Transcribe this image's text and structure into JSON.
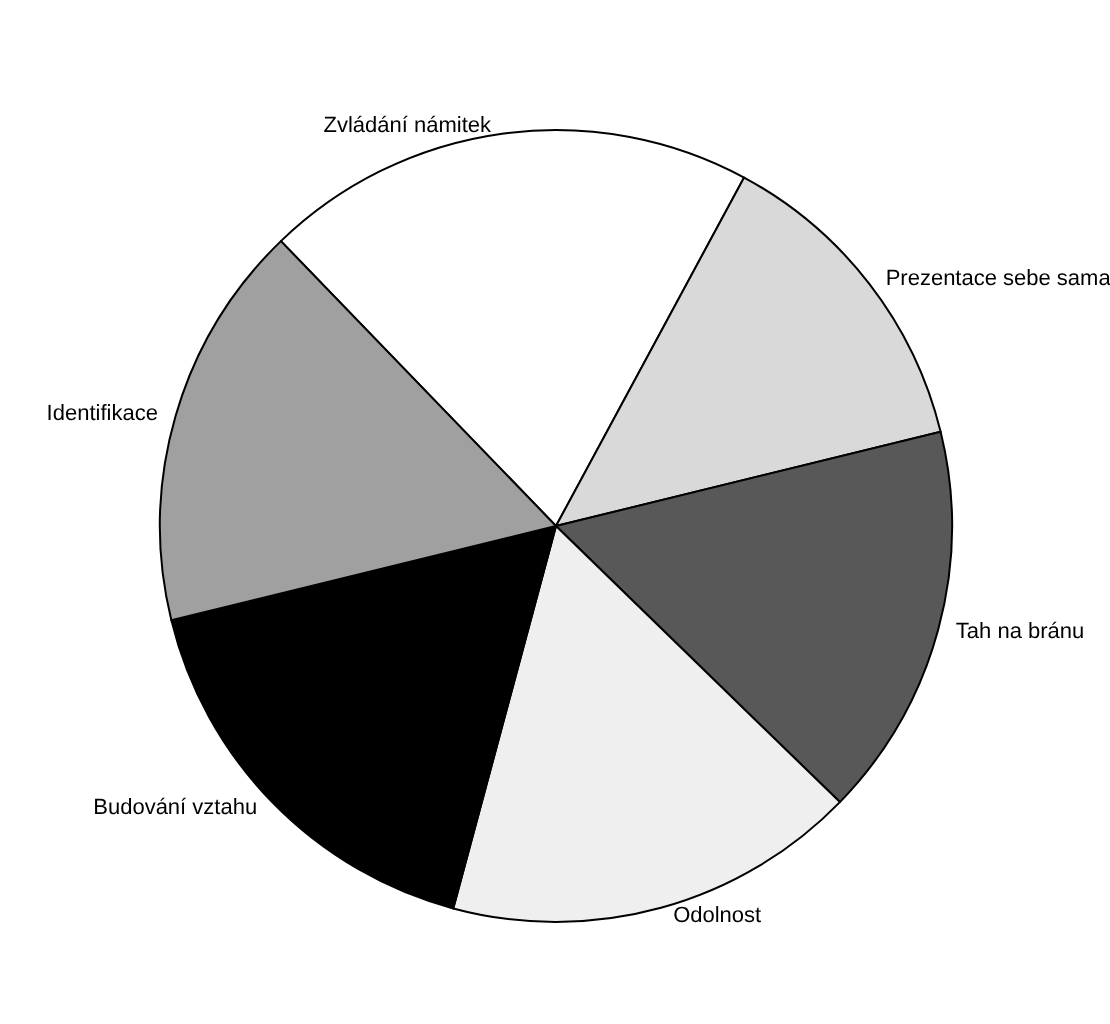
{
  "chart_data": {
    "type": "pie",
    "categories": [
      "Zvládání námitek",
      "Prezentace sebe sama",
      "Tah na bránu",
      "Odolnost",
      "Budování vztahu",
      "Identifikace"
    ],
    "values": [
      20.1,
      13.3,
      16.1,
      16.9,
      17.0,
      16.6
    ],
    "colors": [
      "#ffffff",
      "#d9d9d9",
      "#585858",
      "#efefef",
      "#000000",
      "#a0a0a0"
    ],
    "legend": false
  }
}
